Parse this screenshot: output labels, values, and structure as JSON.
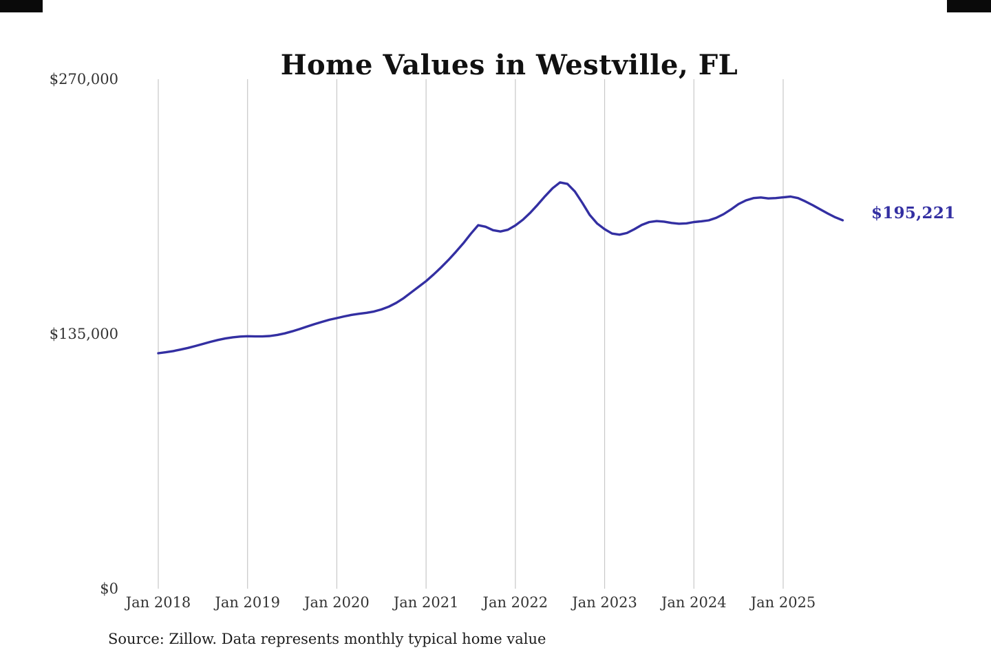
{
  "page": {
    "background_color": "#ffffff"
  },
  "chart_data": {
    "type": "line",
    "title": "Home Values in Westville, FL",
    "series_name": "Monthly typical home value",
    "start_month": "2018-01",
    "end_month": "2025-09",
    "values": [
      124800,
      125300,
      125900,
      126700,
      127600,
      128600,
      129700,
      130800,
      131800,
      132600,
      133200,
      133600,
      133800,
      133700,
      133700,
      133900,
      134500,
      135300,
      136400,
      137600,
      138900,
      140200,
      141400,
      142500,
      143400,
      144300,
      145100,
      145700,
      146200,
      146900,
      148000,
      149500,
      151500,
      154000,
      157000,
      160000,
      163000,
      166500,
      170200,
      174200,
      178500,
      183000,
      188000,
      192600,
      191800,
      190000,
      189300,
      190200,
      192500,
      195500,
      199200,
      203500,
      208000,
      212200,
      215300,
      214500,
      210500,
      204500,
      198000,
      193500,
      190500,
      188200,
      187600,
      188500,
      190500,
      192800,
      194300,
      194800,
      194500,
      193800,
      193400,
      193600,
      194300,
      194700,
      195200,
      196500,
      198500,
      201000,
      203800,
      205800,
      207000,
      207300,
      206800,
      207000,
      207400,
      207800,
      207000,
      205200,
      203200,
      201000,
      198800,
      196800,
      195221
    ],
    "x_tick_labels": [
      "Jan 2018",
      "Jan 2019",
      "Jan 2020",
      "Jan 2021",
      "Jan 2022",
      "Jan 2023",
      "Jan 2024",
      "Jan 2025"
    ],
    "y_tick_labels": [
      "$0",
      "$135,000",
      "$270,000"
    ],
    "y_tick_values": [
      0,
      135000,
      270000
    ],
    "ylim": [
      0,
      270000
    ],
    "end_label": "$195,221",
    "line_color": "#332fa2",
    "gridline_color": "#c7c7c7",
    "grid": "vertical-only",
    "legend": "none",
    "source_note": "Source: Zillow. Data represents monthly typical home value"
  }
}
